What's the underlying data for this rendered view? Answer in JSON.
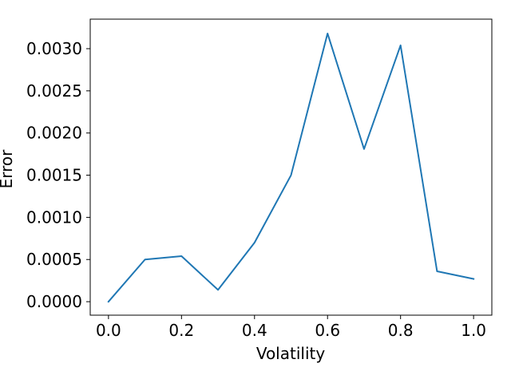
{
  "chart_data": {
    "type": "line",
    "title": "",
    "xlabel": "Volatility",
    "ylabel": "Error",
    "x": [
      0.0,
      0.1,
      0.2,
      0.3,
      0.4,
      0.5,
      0.6,
      0.7,
      0.8,
      0.9,
      1.0
    ],
    "series": [
      {
        "values": [
          0.0,
          0.0005,
          0.00054,
          0.00014,
          0.0007,
          0.0015,
          0.00318,
          0.00181,
          0.00304,
          0.00036,
          0.00027
        ],
        "color": "#1f77b4"
      }
    ],
    "xlim": [
      -0.05,
      1.05
    ],
    "ylim": [
      -0.00016,
      0.00335
    ],
    "xticks": [
      0.0,
      0.2,
      0.4,
      0.6,
      0.8,
      1.0
    ],
    "xtick_labels": [
      "0.0",
      "0.2",
      "0.4",
      "0.6",
      "0.8",
      "1.0"
    ],
    "yticks": [
      0.0,
      0.0005,
      0.001,
      0.0015,
      0.002,
      0.0025,
      0.003
    ],
    "ytick_labels": [
      "0.0000",
      "0.0005",
      "0.0010",
      "0.0015",
      "0.0020",
      "0.0025",
      "0.0030"
    ],
    "grid": false,
    "legend": "none"
  }
}
